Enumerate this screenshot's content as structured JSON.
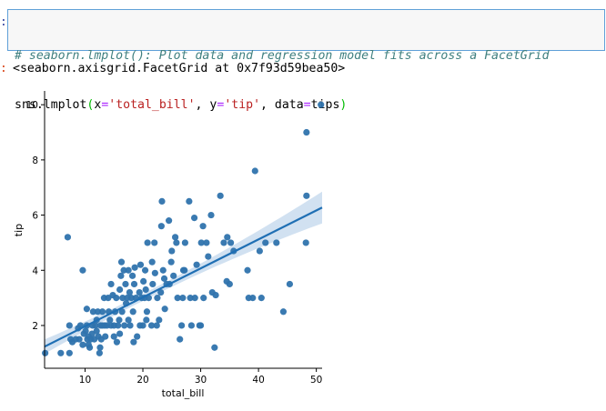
{
  "input_cell": {
    "prompt": ":",
    "comment": "# seaborn.lmplot(): Plot data and regression model fits across a FacetGrid",
    "code_tokens": [
      {
        "t": "sns.lmplot",
        "c": "name"
      },
      {
        "t": "(",
        "c": "par"
      },
      {
        "t": "x",
        "c": "name"
      },
      {
        "t": "=",
        "c": "op"
      },
      {
        "t": "'total_bill'",
        "c": "str"
      },
      {
        "t": ", y",
        "c": "name"
      },
      {
        "t": "=",
        "c": "op"
      },
      {
        "t": "'tip'",
        "c": "str"
      },
      {
        "t": ", data",
        "c": "name"
      },
      {
        "t": "=",
        "c": "op"
      },
      {
        "t": "tips",
        "c": "name"
      },
      {
        "t": ")",
        "c": "par"
      }
    ]
  },
  "output_cell": {
    "prompt": ":",
    "text": "<seaborn.axisgrid.FacetGrid at 0x7f93d59bea50>"
  },
  "colors": {
    "point": "#2f73ad",
    "line": "#1f6fb4",
    "band": "#c9dcee",
    "cell_border": "#5fa0d8"
  },
  "chart_data": {
    "type": "scatter",
    "xlabel": "total_bill",
    "ylabel": "tip",
    "xlim": [
      3,
      51
    ],
    "ylim": [
      0.45,
      10.5
    ],
    "xticks": [
      10,
      20,
      30,
      40,
      50
    ],
    "yticks": [
      2,
      4,
      6,
      8,
      10
    ],
    "grid": false,
    "regression": {
      "x_range": [
        3,
        51
      ],
      "intercept": 0.92,
      "slope": 0.105,
      "ci_at_max": [
        5.75,
        6.9
      ]
    },
    "points": [
      [
        3.1,
        1.0
      ],
      [
        5.8,
        1.0
      ],
      [
        7.3,
        1.0
      ],
      [
        7.5,
        1.5
      ],
      [
        7.3,
        2.0
      ],
      [
        7.0,
        5.2
      ],
      [
        9.6,
        4.0
      ],
      [
        7.8,
        1.4
      ],
      [
        8.4,
        1.5
      ],
      [
        8.8,
        1.9
      ],
      [
        9.0,
        1.5
      ],
      [
        9.2,
        2.0
      ],
      [
        9.6,
        1.3
      ],
      [
        9.8,
        1.7
      ],
      [
        10.1,
        1.8
      ],
      [
        10.3,
        2.0
      ],
      [
        10.4,
        1.5
      ],
      [
        10.6,
        1.6
      ],
      [
        10.3,
        2.6
      ],
      [
        10.6,
        1.3
      ],
      [
        10.8,
        1.2
      ],
      [
        11.0,
        1.5
      ],
      [
        11.2,
        1.7
      ],
      [
        11.3,
        2.0
      ],
      [
        11.4,
        2.5
      ],
      [
        11.6,
        1.5
      ],
      [
        11.8,
        2.0
      ],
      [
        12.0,
        1.8
      ],
      [
        12.0,
        2.2
      ],
      [
        12.2,
        2.5
      ],
      [
        12.3,
        1.6
      ],
      [
        12.5,
        1.0
      ],
      [
        12.6,
        1.2
      ],
      [
        12.7,
        2.0
      ],
      [
        12.8,
        1.5
      ],
      [
        13.0,
        2.0
      ],
      [
        13.0,
        2.5
      ],
      [
        13.3,
        3.0
      ],
      [
        13.4,
        2.0
      ],
      [
        13.5,
        1.6
      ],
      [
        13.8,
        2.0
      ],
      [
        14.0,
        3.0
      ],
      [
        14.1,
        2.5
      ],
      [
        14.3,
        2.2
      ],
      [
        14.5,
        2.0
      ],
      [
        14.5,
        3.5
      ],
      [
        14.8,
        3.1
      ],
      [
        15.0,
        2.0
      ],
      [
        15.0,
        1.6
      ],
      [
        15.2,
        2.5
      ],
      [
        15.4,
        3.0
      ],
      [
        15.5,
        1.4
      ],
      [
        15.7,
        2.0
      ],
      [
        15.9,
        2.2
      ],
      [
        16.0,
        3.3
      ],
      [
        16.0,
        1.7
      ],
      [
        16.2,
        3.8
      ],
      [
        16.3,
        4.3
      ],
      [
        16.4,
        2.5
      ],
      [
        16.5,
        3.0
      ],
      [
        16.7,
        4.0
      ],
      [
        16.8,
        2.0
      ],
      [
        17.0,
        3.5
      ],
      [
        17.1,
        2.8
      ],
      [
        17.3,
        3.0
      ],
      [
        17.5,
        2.2
      ],
      [
        17.5,
        4.0
      ],
      [
        17.7,
        3.2
      ],
      [
        17.8,
        2.0
      ],
      [
        18.0,
        3.0
      ],
      [
        18.2,
        3.8
      ],
      [
        18.3,
        2.5
      ],
      [
        18.4,
        1.4
      ],
      [
        18.5,
        3.5
      ],
      [
        18.6,
        4.1
      ],
      [
        18.8,
        3.0
      ],
      [
        19.0,
        1.6
      ],
      [
        19.4,
        3.2
      ],
      [
        19.5,
        2.0
      ],
      [
        19.6,
        4.2
      ],
      [
        19.8,
        3.0
      ],
      [
        20.0,
        2.0
      ],
      [
        20.1,
        3.6
      ],
      [
        20.3,
        3.0
      ],
      [
        20.4,
        4.0
      ],
      [
        20.5,
        3.3
      ],
      [
        20.6,
        2.2
      ],
      [
        20.7,
        2.5
      ],
      [
        20.8,
        5.0
      ],
      [
        21.0,
        3.0
      ],
      [
        21.5,
        2.0
      ],
      [
        21.6,
        4.3
      ],
      [
        21.7,
        3.5
      ],
      [
        22.0,
        5.0
      ],
      [
        22.1,
        3.9
      ],
      [
        22.4,
        2.0
      ],
      [
        22.5,
        3.0
      ],
      [
        22.8,
        2.2
      ],
      [
        23.1,
        3.2
      ],
      [
        23.2,
        5.6
      ],
      [
        23.3,
        6.5
      ],
      [
        23.5,
        4.0
      ],
      [
        23.7,
        3.7
      ],
      [
        23.8,
        2.6
      ],
      [
        24.1,
        3.5
      ],
      [
        24.5,
        5.8
      ],
      [
        24.6,
        3.5
      ],
      [
        24.9,
        4.3
      ],
      [
        25.0,
        4.7
      ],
      [
        25.3,
        3.8
      ],
      [
        25.6,
        5.2
      ],
      [
        25.8,
        5.0
      ],
      [
        26.0,
        3.0
      ],
      [
        26.4,
        1.5
      ],
      [
        26.7,
        2.0
      ],
      [
        26.9,
        3.0
      ],
      [
        27.0,
        4.0
      ],
      [
        27.2,
        4.0
      ],
      [
        27.3,
        5.0
      ],
      [
        28.0,
        6.5
      ],
      [
        28.2,
        3.0
      ],
      [
        28.4,
        2.0
      ],
      [
        28.9,
        5.9
      ],
      [
        29.0,
        3.0
      ],
      [
        29.3,
        4.2
      ],
      [
        29.8,
        2.0
      ],
      [
        30.0,
        2.0
      ],
      [
        30.1,
        5.0
      ],
      [
        30.4,
        5.6
      ],
      [
        30.5,
        3.0
      ],
      [
        31.0,
        5.0
      ],
      [
        31.3,
        4.5
      ],
      [
        31.8,
        6.0
      ],
      [
        32.0,
        3.2
      ],
      [
        32.4,
        1.2
      ],
      [
        32.6,
        3.1
      ],
      [
        33.4,
        6.7
      ],
      [
        34.0,
        5.0
      ],
      [
        34.5,
        3.6
      ],
      [
        34.6,
        5.2
      ],
      [
        35.0,
        3.5
      ],
      [
        35.2,
        5.0
      ],
      [
        35.7,
        4.7
      ],
      [
        38.1,
        4.0
      ],
      [
        38.3,
        3.0
      ],
      [
        39.0,
        3.0
      ],
      [
        39.4,
        7.6
      ],
      [
        40.2,
        4.7
      ],
      [
        40.5,
        3.0
      ],
      [
        41.2,
        5.0
      ],
      [
        43.1,
        5.0
      ],
      [
        44.3,
        2.5
      ],
      [
        45.4,
        3.5
      ],
      [
        48.2,
        5.0
      ],
      [
        48.3,
        6.7
      ],
      [
        48.3,
        9.0
      ],
      [
        50.8,
        10.0
      ]
    ]
  }
}
